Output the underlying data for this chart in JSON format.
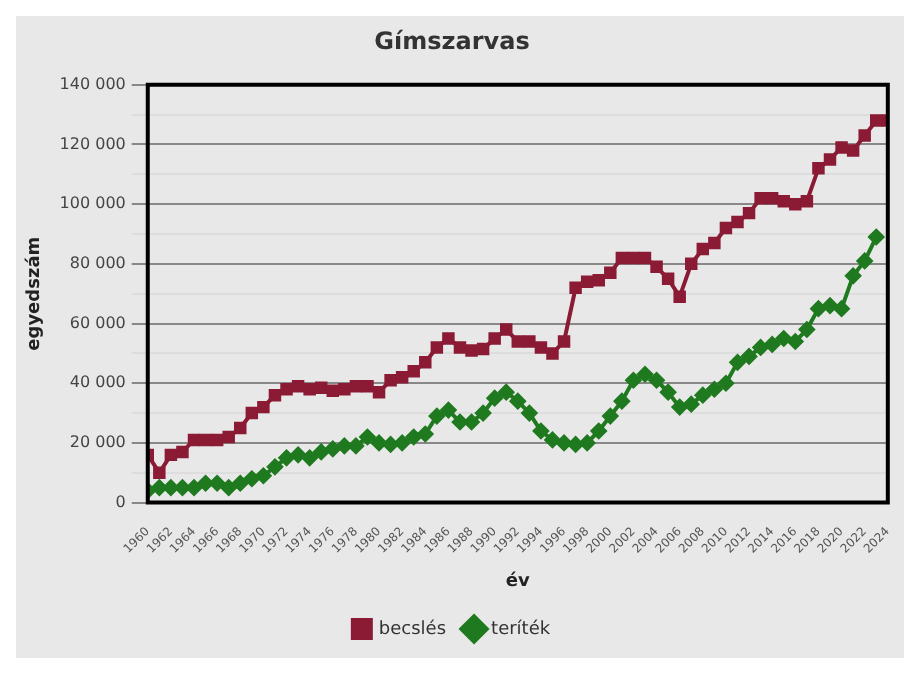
{
  "chart_data": {
    "type": "line",
    "title": "Gímszarvas",
    "xlabel": "év",
    "ylabel": "egyedszám",
    "x": [
      1960,
      1961,
      1962,
      1963,
      1964,
      1965,
      1966,
      1967,
      1968,
      1969,
      1970,
      1971,
      1972,
      1973,
      1974,
      1975,
      1976,
      1977,
      1978,
      1979,
      1980,
      1981,
      1982,
      1983,
      1984,
      1985,
      1986,
      1987,
      1988,
      1989,
      1990,
      1991,
      1992,
      1993,
      1994,
      1995,
      1996,
      1997,
      1998,
      1999,
      2000,
      2001,
      2002,
      2003,
      2004,
      2005,
      2006,
      2007,
      2008,
      2009,
      2010,
      2011,
      2012,
      2013,
      2014,
      2015,
      2016,
      2017,
      2018,
      2019,
      2020,
      2021,
      2022,
      2023,
      2024
    ],
    "series": [
      {
        "name": "becslés",
        "color": "#8b1a35",
        "marker": "square",
        "values": [
          16000,
          10000,
          16000,
          17000,
          21000,
          21000,
          21000,
          22000,
          25000,
          30000,
          32000,
          36000,
          38000,
          39000,
          38000,
          38500,
          37500,
          38000,
          39000,
          39000,
          37000,
          41000,
          42000,
          44000,
          47000,
          52000,
          55000,
          52000,
          51000,
          51500,
          55000,
          58000,
          54000,
          54000,
          52000,
          50000,
          54000,
          72000,
          74000,
          74500,
          77000,
          82000,
          82000,
          82000,
          79000,
          75000,
          69000,
          80000,
          85000,
          87000,
          92000,
          94000,
          97000,
          102000,
          102000,
          101000,
          100000,
          101000,
          112000,
          115000,
          119000,
          118000,
          123000,
          128000,
          128000
        ]
      },
      {
        "name": "teríték",
        "color": "#1f7a1f",
        "marker": "diamond",
        "values": [
          4000,
          5000,
          5000,
          5000,
          5000,
          6500,
          6500,
          5000,
          6500,
          8000,
          9000,
          12000,
          15000,
          16000,
          15000,
          17000,
          18000,
          19000,
          19000,
          22000,
          20000,
          19500,
          20000,
          22000,
          23000,
          29000,
          31000,
          27000,
          27000,
          30000,
          35000,
          37000,
          34000,
          30000,
          24000,
          21000,
          20000,
          19500,
          20000,
          24000,
          29000,
          34000,
          41000,
          43000,
          41000,
          37000,
          32000,
          33000,
          36000,
          38000,
          40000,
          47000,
          49000,
          52000,
          53000,
          55000,
          54000,
          58000,
          65000,
          66000,
          65000,
          76000,
          81000,
          89000,
          null
        ]
      }
    ],
    "xlim": [
      1960,
      2024
    ],
    "xticks": [
      1960,
      1962,
      1964,
      1966,
      1968,
      1970,
      1972,
      1974,
      1976,
      1978,
      1980,
      1982,
      1984,
      1986,
      1988,
      1990,
      1992,
      1994,
      1996,
      1998,
      2000,
      2002,
      2004,
      2006,
      2008,
      2010,
      2012,
      2014,
      2016,
      2018,
      2020,
      2022,
      2024
    ],
    "ylim": [
      0,
      140000
    ],
    "yticks": [
      {
        "value": 0,
        "label": "0"
      },
      {
        "value": 10000,
        "label": null
      },
      {
        "value": 20000,
        "label": "20 000"
      },
      {
        "value": 30000,
        "label": null
      },
      {
        "value": 40000,
        "label": "40 000"
      },
      {
        "value": 50000,
        "label": null
      },
      {
        "value": 60000,
        "label": "60 000"
      },
      {
        "value": 70000,
        "label": null
      },
      {
        "value": 80000,
        "label": "80 000"
      },
      {
        "value": 90000,
        "label": null
      },
      {
        "value": 100000,
        "label": "100 000"
      },
      {
        "value": 110000,
        "label": null
      },
      {
        "value": 120000,
        "label": "120 000"
      },
      {
        "value": 130000,
        "label": null
      },
      {
        "value": 140000,
        "label": "140 000"
      }
    ],
    "grid": "y",
    "legend": "bottom"
  }
}
